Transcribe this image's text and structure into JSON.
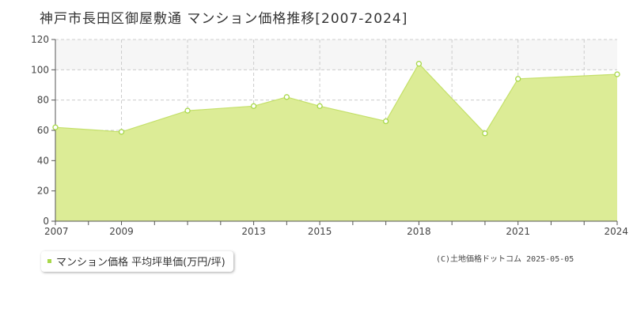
{
  "title": "神戸市長田区御屋敷通 マンション価格推移[2007-2024]",
  "legend_label": "マンション価格 平均坪単価(万円/坪)",
  "copyright": "(C)土地価格ドットコム 2025-05-05",
  "colors": {
    "fill": "#dcec96",
    "line": "#c4e06a",
    "marker": "#a8d84a",
    "band": "#f6f6f6"
  },
  "chart_data": {
    "type": "area",
    "title": "神戸市長田区御屋敷通 マンション価格推移[2007-2024]",
    "xlabel": "",
    "ylabel": "",
    "xlim": [
      2007,
      2024
    ],
    "ylim": [
      0,
      120
    ],
    "yticks": [
      0,
      20,
      40,
      60,
      80,
      100,
      120
    ],
    "xtick_labels": [
      "2007",
      "2009",
      "2013",
      "2015",
      "2018",
      "2021",
      "2024"
    ],
    "grid": true,
    "legend_position": "bottom-left",
    "series": [
      {
        "name": "マンション価格 平均坪単価(万円/坪)",
        "points": [
          {
            "x": 2007,
            "y": 62
          },
          {
            "x": 2009,
            "y": 59
          },
          {
            "x": 2011,
            "y": 73
          },
          {
            "x": 2013,
            "y": 76
          },
          {
            "x": 2014,
            "y": 82
          },
          {
            "x": 2015,
            "y": 76
          },
          {
            "x": 2017,
            "y": 66
          },
          {
            "x": 2018,
            "y": 104
          },
          {
            "x": 2020,
            "y": 58
          },
          {
            "x": 2021,
            "y": 94
          },
          {
            "x": 2024,
            "y": 97
          }
        ]
      }
    ]
  }
}
